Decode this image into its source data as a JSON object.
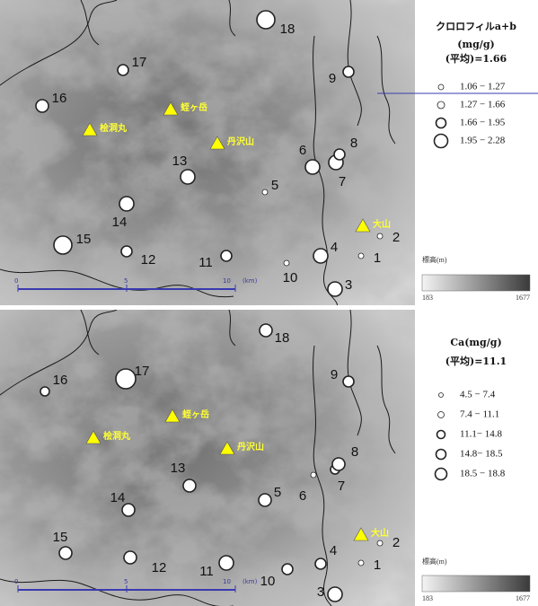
{
  "panels": [
    {
      "legend": {
        "title": [
          "クロロフィルa+b",
          "(mg/g)",
          "(平均)=1.66"
        ],
        "ranges": [
          "1.06 − 1.27",
          "1.27 − 1.66",
          "1.66 − 1.95",
          "1.95 − 2.28"
        ]
      },
      "elevation": {
        "label": "標高(m)",
        "min": "183",
        "max": "1677"
      },
      "scale_bar": [
        "0",
        "5",
        "10",
        "(km)"
      ],
      "peaks": [
        "桧洞丸",
        "蛭ヶ岳",
        "丹沢山",
        "大山"
      ],
      "sites": [
        "1",
        "2",
        "3",
        "4",
        "5",
        "6",
        "7",
        "8",
        "9",
        "10",
        "11",
        "12",
        "13",
        "14",
        "15",
        "16",
        "17",
        "18"
      ]
    },
    {
      "legend": {
        "title": [
          "Ca(mg/g)",
          "(平均)=11.1"
        ],
        "ranges": [
          "4.5 − 7.4",
          "7.4 − 11.1",
          "11.1− 14.8",
          "14.8− 18.5",
          "18.5 − 18.8"
        ]
      },
      "elevation": {
        "label": "標高(m)",
        "min": "183",
        "max": "1677"
      },
      "scale_bar": [
        "0",
        "5",
        "10",
        "(km)"
      ],
      "peaks": [
        "桧洞丸",
        "蛭ヶ岳",
        "丹沢山",
        "大山"
      ],
      "sites": [
        "1",
        "2",
        "3",
        "4",
        "5",
        "6",
        "7",
        "8",
        "9",
        "10",
        "11",
        "12",
        "13",
        "14",
        "15",
        "16",
        "17",
        "18"
      ]
    }
  ]
}
